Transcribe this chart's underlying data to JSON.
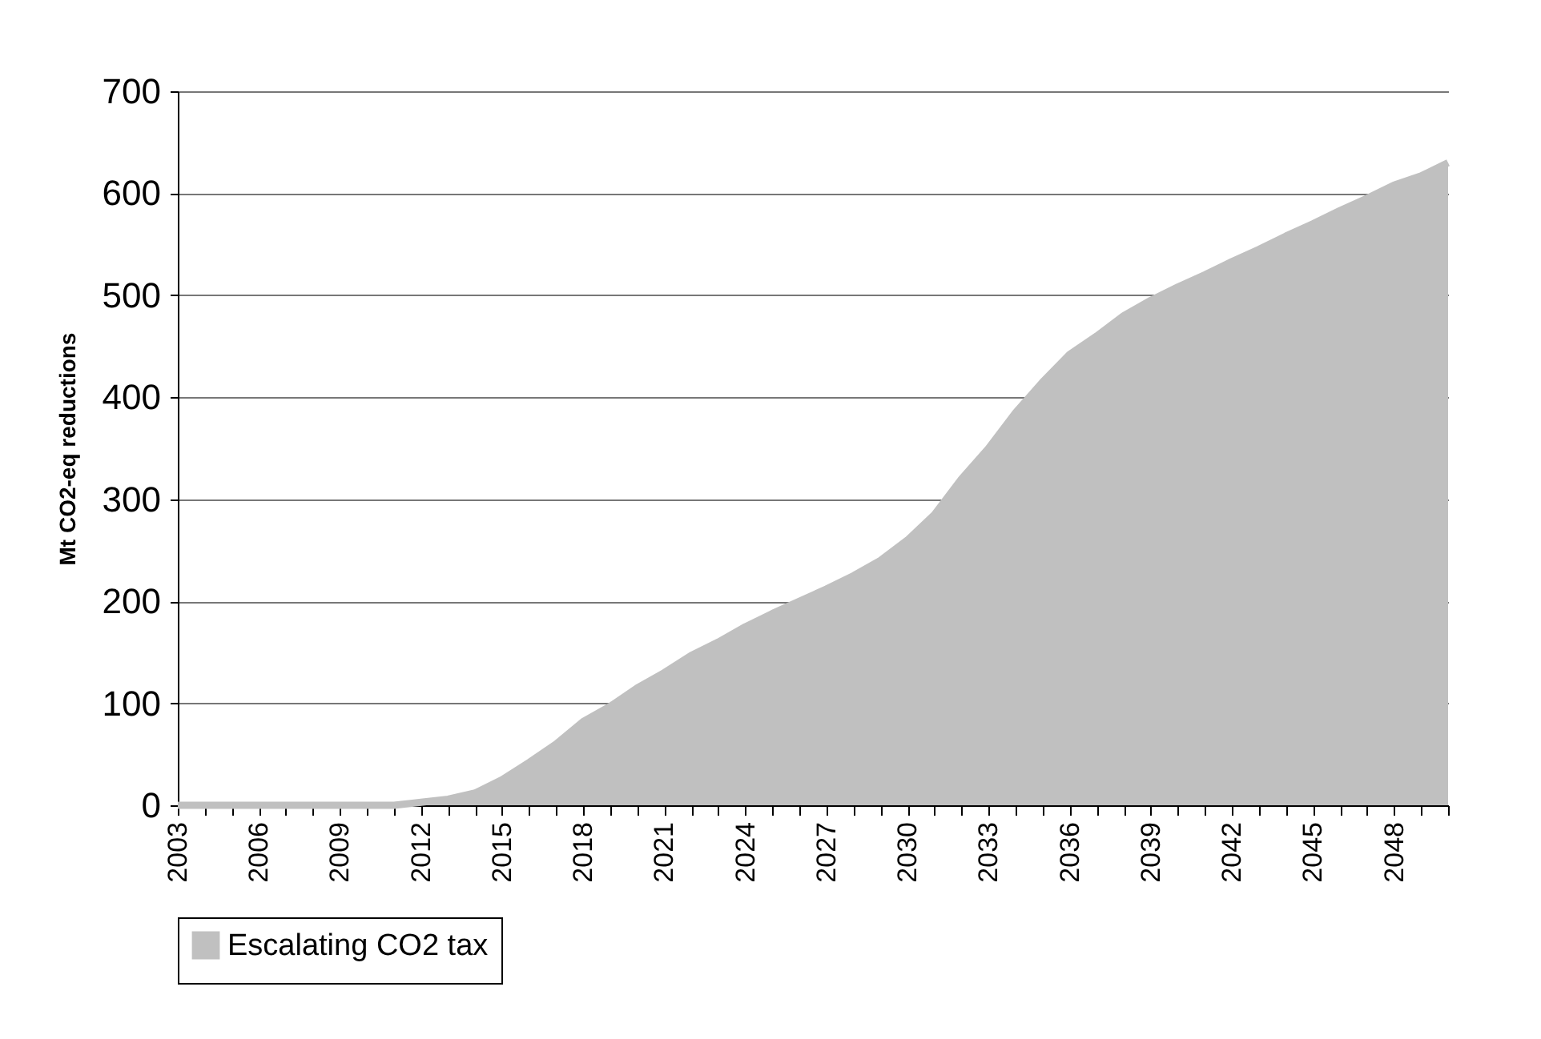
{
  "chart_data": {
    "type": "area",
    "ylabel": "Mt CO2-eq reductions",
    "categories": [
      "2003",
      null,
      null,
      "2006",
      null,
      null,
      "2009",
      null,
      null,
      "2012",
      null,
      null,
      "2015",
      null,
      null,
      "2018",
      null,
      null,
      "2021",
      null,
      null,
      "2024",
      null,
      null,
      "2027",
      null,
      null,
      "2030",
      null,
      null,
      "2033",
      null,
      null,
      "2036",
      null,
      null,
      "2039",
      null,
      null,
      "2042",
      null,
      null,
      "2045",
      null,
      null,
      "2048",
      null,
      null
    ],
    "series": [
      {
        "name": "Escalating CO2 tax",
        "color": "#c0c0c0",
        "values": [
          0,
          0,
          0,
          0,
          0,
          0,
          0,
          0,
          0,
          3,
          6,
          12,
          25,
          42,
          60,
          82,
          97,
          115,
          130,
          147,
          160,
          175,
          188,
          200,
          212,
          225,
          240,
          260,
          285,
          320,
          350,
          385,
          415,
          442,
          460,
          480,
          495,
          508,
          520,
          533,
          545,
          558,
          570,
          583,
          595,
          608,
          617,
          630
        ]
      }
    ],
    "ylim": [
      0,
      700
    ],
    "yticks": [
      0,
      100,
      200,
      300,
      400,
      500,
      600,
      700
    ],
    "grid": "y",
    "legend": "bottom"
  }
}
